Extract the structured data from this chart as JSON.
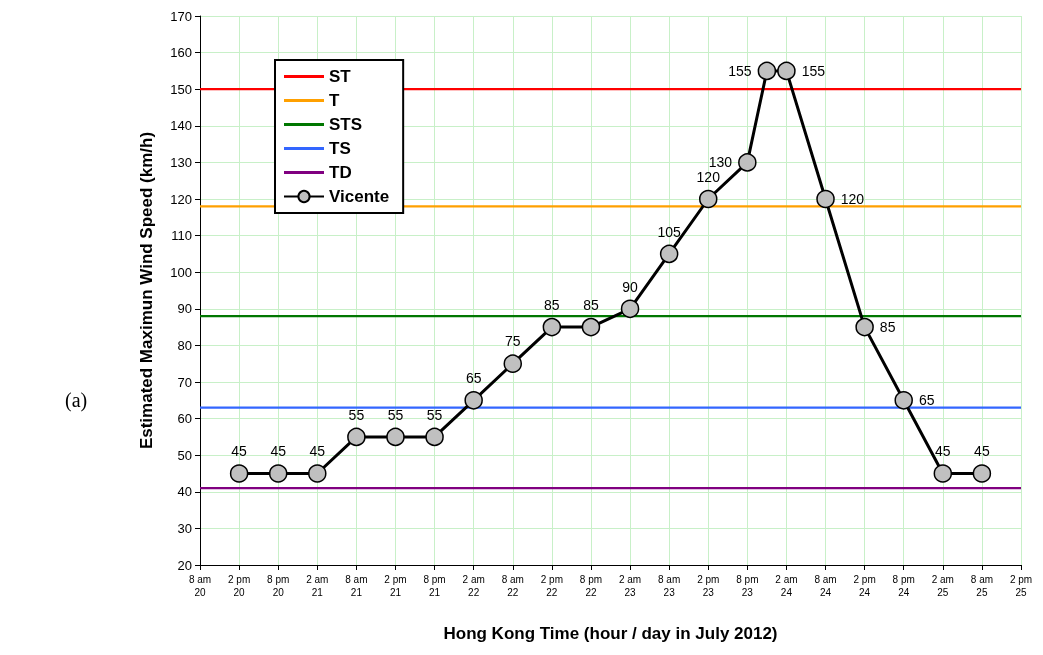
{
  "chart_data": {
    "type": "line",
    "xlabel": "Hong Kong Time (hour / day in July 2012)",
    "ylabel": "Estimated Maximun Wind Speed (km/h)",
    "annotations": [
      "(a)"
    ],
    "x": [
      "2012-07-20T14:00",
      "2012-07-20T20:00",
      "2012-07-21T02:00",
      "2012-07-21T08:00",
      "2012-07-21T14:00",
      "2012-07-21T20:00",
      "2012-07-22T02:00",
      "2012-07-22T08:00",
      "2012-07-22T14:00",
      "2012-07-22T20:00",
      "2012-07-23T02:00",
      "2012-07-23T08:00",
      "2012-07-23T14:00",
      "2012-07-23T20:00",
      "2012-07-23T23:00",
      "2012-07-24T02:00",
      "2012-07-24T08:00",
      "2012-07-24T14:00",
      "2012-07-24T20:00",
      "2012-07-25T02:00",
      "2012-07-25T08:00"
    ],
    "series": [
      {
        "name": "ST",
        "color": "#ff0000",
        "marker": "none",
        "x": [
          "2012-07-20T08:00",
          "2012-07-25T14:00"
        ],
        "values": [
          150,
          150
        ],
        "value_labels": [
          null,
          null
        ]
      },
      {
        "name": "T",
        "color": "#ffa000",
        "marker": "none",
        "x": [
          "2012-07-20T08:00",
          "2012-07-25T14:00"
        ],
        "values": [
          118,
          118
        ],
        "value_labels": [
          null,
          null
        ]
      },
      {
        "name": "STS",
        "color": "#007700",
        "marker": "none",
        "x": [
          "2012-07-20T08:00",
          "2012-07-25T14:00"
        ],
        "values": [
          88,
          88
        ],
        "value_labels": [
          null,
          null
        ]
      },
      {
        "name": "TS",
        "color": "#3366ff",
        "marker": "none",
        "x": [
          "2012-07-20T08:00",
          "2012-07-25T14:00"
        ],
        "values": [
          63,
          63
        ],
        "value_labels": [
          null,
          null
        ]
      },
      {
        "name": "TD",
        "color": "#800080",
        "marker": "none",
        "x": [
          "2012-07-20T08:00",
          "2012-07-25T14:00"
        ],
        "values": [
          41,
          41
        ],
        "value_labels": [
          null,
          null
        ]
      },
      {
        "name": "Vicente",
        "color": "#000000",
        "values": [
          45,
          45,
          45,
          55,
          55,
          55,
          65,
          75,
          85,
          85,
          90,
          105,
          120,
          130,
          155,
          155,
          120,
          85,
          65,
          45,
          45
        ],
        "value_labels": [
          "45",
          "45",
          "45",
          "55",
          "55",
          "55",
          "65",
          "75",
          "85",
          "85",
          "90",
          "105",
          "120",
          "130",
          "155",
          "155",
          "120",
          "85",
          "65",
          "45",
          "45"
        ]
      }
    ],
    "xlim": [
      "2012-07-20T08:00",
      "2012-07-25T14:00"
    ],
    "xticks": [
      {
        "value": "2012-07-20T08:00",
        "label": "8 am\n20"
      },
      {
        "value": "2012-07-20T14:00",
        "label": "2 pm\n20"
      },
      {
        "value": "2012-07-20T20:00",
        "label": "8 pm\n20"
      },
      {
        "value": "2012-07-21T02:00",
        "label": "2 am\n21"
      },
      {
        "value": "2012-07-21T08:00",
        "label": "8 am\n21"
      },
      {
        "value": "2012-07-21T14:00",
        "label": "2 pm\n21"
      },
      {
        "value": "2012-07-21T20:00",
        "label": "8 pm\n21"
      },
      {
        "value": "2012-07-22T02:00",
        "label": "2 am\n22"
      },
      {
        "value": "2012-07-22T08:00",
        "label": "8 am\n22"
      },
      {
        "value": "2012-07-22T14:00",
        "label": "2 pm\n22"
      },
      {
        "value": "2012-07-22T20:00",
        "label": "8 pm\n22"
      },
      {
        "value": "2012-07-23T02:00",
        "label": "2 am\n23"
      },
      {
        "value": "2012-07-23T08:00",
        "label": "8 am\n23"
      },
      {
        "value": "2012-07-23T14:00",
        "label": "2 pm\n23"
      },
      {
        "value": "2012-07-23T20:00",
        "label": "8 pm\n23"
      },
      {
        "value": "2012-07-24T02:00",
        "label": "2 am\n24"
      },
      {
        "value": "2012-07-24T08:00",
        "label": "8 am\n24"
      },
      {
        "value": "2012-07-24T14:00",
        "label": "2 pm\n24"
      },
      {
        "value": "2012-07-24T20:00",
        "label": "8 pm\n24"
      },
      {
        "value": "2012-07-25T02:00",
        "label": "2 am\n25"
      },
      {
        "value": "2012-07-25T08:00",
        "label": "8 am\n25"
      },
      {
        "value": "2012-07-25T14:00",
        "label": "2 pm\n25"
      }
    ],
    "ylim": [
      20,
      170
    ],
    "yticks": [
      20,
      30,
      40,
      50,
      60,
      70,
      80,
      90,
      100,
      110,
      120,
      130,
      140,
      150,
      160,
      170
    ],
    "grid": true,
    "legend": "top left",
    "marker": "circle",
    "line_style": "solid"
  }
}
